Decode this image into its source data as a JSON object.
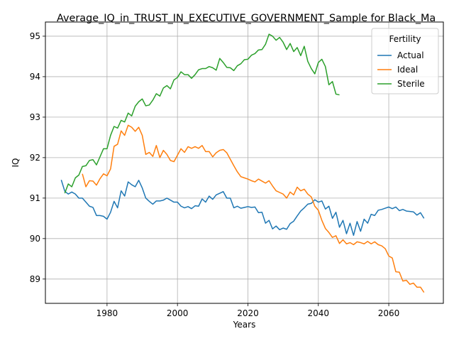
{
  "chart_data": {
    "type": "line",
    "title": "Average_IQ_in_TRUST_IN_EXECUTIVE_GOVERNMENT_Sample for Black_Ma",
    "xlabel": "Years",
    "ylabel": "IQ",
    "xlim": [
      1962.5,
      2075.5
    ],
    "ylim": [
      88.4,
      95.35
    ],
    "xticks": [
      1980,
      2000,
      2020,
      2040,
      2060
    ],
    "yticks": [
      89,
      90,
      91,
      92,
      93,
      94,
      95
    ],
    "grid": true,
    "legend": {
      "title": "Fertility",
      "placement": "top-right"
    },
    "series": [
      {
        "name": "Actual",
        "color": "#1f77b4",
        "x": [
          1967,
          1968,
          1969,
          1970,
          1971,
          1972,
          1973,
          1974,
          1975,
          1976,
          1977,
          1978,
          1979,
          1980,
          1981,
          1982,
          1983,
          1984,
          1985,
          1986,
          1987,
          1988,
          1989,
          1990,
          1991,
          1992,
          1993,
          1994,
          1995,
          1996,
          1997,
          1998,
          1999,
          2000,
          2001,
          2002,
          2003,
          2004,
          2005,
          2006,
          2007,
          2008,
          2009,
          2010,
          2011,
          2012,
          2013,
          2014,
          2015,
          2016,
          2017,
          2018,
          2019,
          2020,
          2021,
          2022,
          2023,
          2024,
          2025,
          2026,
          2027,
          2028,
          2029,
          2030,
          2031,
          2032,
          2033,
          2034,
          2035,
          2036,
          2037,
          2038,
          2039,
          2040,
          2041,
          2042,
          2043,
          2044,
          2045,
          2046,
          2047,
          2048,
          2049,
          2050,
          2051,
          2052,
          2053,
          2054,
          2055,
          2056,
          2057,
          2058,
          2059,
          2060,
          2061,
          2062,
          2063,
          2064,
          2065,
          2066,
          2067,
          2068,
          2069,
          2070
        ],
        "values": [
          91.45,
          91.17,
          91.1,
          91.15,
          91.1,
          91.0,
          91.0,
          90.9,
          90.8,
          90.77,
          90.57,
          90.57,
          90.55,
          90.48,
          90.65,
          90.92,
          90.76,
          91.18,
          91.05,
          91.4,
          91.33,
          91.28,
          91.44,
          91.25,
          91.0,
          90.92,
          90.85,
          90.93,
          90.93,
          90.95,
          91.0,
          90.95,
          90.9,
          90.9,
          90.8,
          90.76,
          90.79,
          90.74,
          90.81,
          90.8,
          90.98,
          90.9,
          91.05,
          90.97,
          91.08,
          91.12,
          91.16,
          91.0,
          91.0,
          90.76,
          90.8,
          90.75,
          90.77,
          90.79,
          90.77,
          90.78,
          90.64,
          90.65,
          90.38,
          90.45,
          90.24,
          90.31,
          90.22,
          90.26,
          90.23,
          90.37,
          90.43,
          90.56,
          90.68,
          90.76,
          90.85,
          90.87,
          90.96,
          90.9,
          90.93,
          90.73,
          90.8,
          90.5,
          90.65,
          90.28,
          90.45,
          90.12,
          90.38,
          90.08,
          90.42,
          90.18,
          90.48,
          90.38,
          90.6,
          90.57,
          90.7,
          90.72,
          90.75,
          90.78,
          90.74,
          90.78,
          90.69,
          90.72,
          90.68,
          90.67,
          90.66,
          90.58,
          90.64,
          90.5
        ]
      },
      {
        "name": "Ideal",
        "color": "#ff7f0e",
        "x": [
          1973,
          1974,
          1975,
          1976,
          1977,
          1978,
          1979,
          1980,
          1981,
          1982,
          1983,
          1984,
          1985,
          1986,
          1987,
          1988,
          1989,
          1990,
          1991,
          1992,
          1993,
          1994,
          1995,
          1996,
          1997,
          1998,
          1999,
          2000,
          2001,
          2002,
          2003,
          2004,
          2005,
          2006,
          2007,
          2008,
          2009,
          2010,
          2011,
          2012,
          2013,
          2014,
          2015,
          2016,
          2017,
          2018,
          2019,
          2020,
          2021,
          2022,
          2023,
          2024,
          2025,
          2026,
          2027,
          2028,
          2029,
          2030,
          2031,
          2032,
          2033,
          2034,
          2035,
          2036,
          2037,
          2038,
          2039,
          2040,
          2041,
          2042,
          2043,
          2044,
          2045,
          2046,
          2047,
          2048,
          2049,
          2050,
          2051,
          2052,
          2053,
          2054,
          2055,
          2056,
          2057,
          2058,
          2059,
          2060,
          2061,
          2062,
          2063,
          2064,
          2065,
          2066,
          2067,
          2068,
          2069,
          2070
        ],
        "values": [
          91.6,
          91.28,
          91.43,
          91.42,
          91.32,
          91.48,
          91.6,
          91.55,
          91.72,
          92.28,
          92.33,
          92.66,
          92.55,
          92.8,
          92.75,
          92.65,
          92.75,
          92.55,
          92.08,
          92.13,
          92.03,
          92.3,
          92.0,
          92.18,
          92.08,
          91.93,
          91.9,
          92.06,
          92.22,
          92.13,
          92.27,
          92.23,
          92.27,
          92.23,
          92.3,
          92.15,
          92.15,
          92.02,
          92.12,
          92.18,
          92.2,
          92.12,
          91.96,
          91.8,
          91.65,
          91.53,
          91.5,
          91.47,
          91.43,
          91.4,
          91.47,
          91.42,
          91.37,
          91.43,
          91.3,
          91.18,
          91.14,
          91.1,
          91.0,
          91.15,
          91.08,
          91.27,
          91.18,
          91.22,
          91.1,
          91.03,
          90.8,
          90.7,
          90.45,
          90.25,
          90.15,
          90.03,
          90.07,
          89.88,
          89.97,
          89.87,
          89.9,
          89.85,
          89.92,
          89.9,
          89.87,
          89.93,
          89.87,
          89.92,
          89.85,
          89.82,
          89.75,
          89.57,
          89.52,
          89.18,
          89.17,
          88.95,
          88.97,
          88.87,
          88.9,
          88.8,
          88.8,
          88.67
        ]
      },
      {
        "name": "Sterile",
        "color": "#2ca02c",
        "x": [
          1968,
          1969,
          1970,
          1971,
          1972,
          1973,
          1974,
          1975,
          1976,
          1977,
          1978,
          1979,
          1980,
          1981,
          1982,
          1983,
          1984,
          1985,
          1986,
          1987,
          1988,
          1989,
          1990,
          1991,
          1992,
          1993,
          1994,
          1995,
          1996,
          1997,
          1998,
          1999,
          2000,
          2001,
          2002,
          2003,
          2004,
          2005,
          2006,
          2007,
          2008,
          2009,
          2010,
          2011,
          2012,
          2013,
          2014,
          2015,
          2016,
          2017,
          2018,
          2019,
          2020,
          2021,
          2022,
          2023,
          2024,
          2025,
          2026,
          2027,
          2028,
          2029,
          2030,
          2031,
          2032,
          2033,
          2034,
          2035,
          2036,
          2037,
          2038,
          2039,
          2040,
          2041,
          2042,
          2043,
          2044,
          2045,
          2046
        ],
        "values": [
          91.12,
          91.35,
          91.28,
          91.5,
          91.57,
          91.78,
          91.8,
          91.93,
          91.95,
          91.82,
          92.02,
          92.22,
          92.22,
          92.55,
          92.77,
          92.73,
          92.92,
          92.88,
          93.1,
          93.03,
          93.27,
          93.38,
          93.45,
          93.28,
          93.3,
          93.42,
          93.58,
          93.52,
          93.72,
          93.78,
          93.7,
          93.92,
          93.98,
          94.12,
          94.05,
          94.05,
          93.96,
          94.05,
          94.17,
          94.2,
          94.2,
          94.25,
          94.22,
          94.16,
          94.45,
          94.35,
          94.23,
          94.22,
          94.15,
          94.27,
          94.32,
          94.42,
          94.43,
          94.53,
          94.57,
          94.66,
          94.67,
          94.8,
          95.05,
          95.0,
          94.9,
          94.97,
          94.85,
          94.67,
          94.82,
          94.62,
          94.72,
          94.52,
          94.75,
          94.38,
          94.2,
          94.07,
          94.35,
          94.43,
          94.25,
          93.8,
          93.88,
          93.57,
          93.55
        ]
      }
    ]
  }
}
